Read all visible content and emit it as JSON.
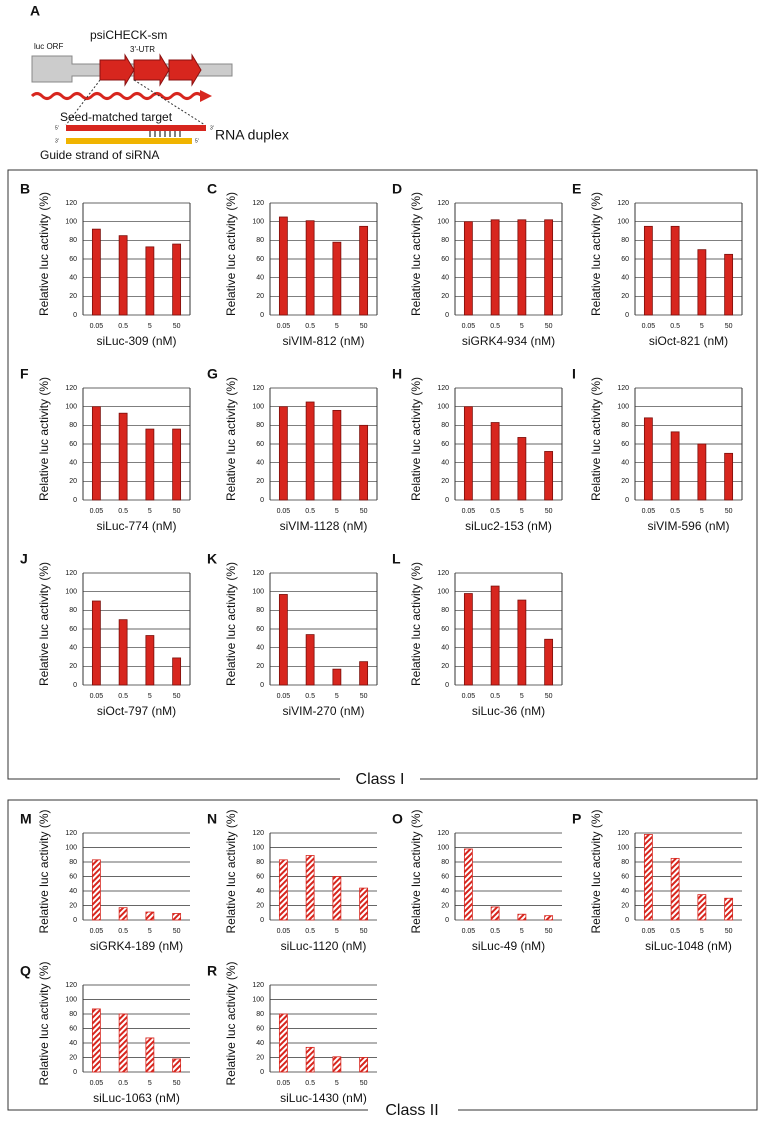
{
  "diagram": {
    "panel": "A",
    "title": "psiCHECK-sm",
    "luc": "luc ORF",
    "utr": "3'-UTR",
    "target": "Seed-matched target",
    "guide": "Guide strand of siRNA",
    "duplex": "RNA duplex",
    "five": "5'",
    "three": "3'"
  },
  "groups": [
    {
      "label": "Class I"
    },
    {
      "label": "Class II"
    }
  ],
  "chart_data": [
    {
      "type": "bar",
      "panel": "B",
      "categories": [
        "0.05",
        "0.5",
        "5",
        "50"
      ],
      "values": [
        92,
        85,
        73,
        76
      ],
      "xlabel": "siLuc-309 (nM)",
      "ylabel": "Relative luc activity (%)",
      "ylim": [
        0,
        120
      ],
      "yticks": [
        0,
        20,
        40,
        60,
        80,
        100,
        120
      ],
      "color": "#d7261e",
      "hatched": false,
      "frame": true
    },
    {
      "type": "bar",
      "panel": "C",
      "categories": [
        "0.05",
        "0.5",
        "5",
        "50"
      ],
      "values": [
        105,
        101,
        78,
        95
      ],
      "xlabel": "siVIM-812 (nM)",
      "ylabel": "Relative luc activity (%)",
      "ylim": [
        0,
        120
      ],
      "yticks": [
        0,
        20,
        40,
        60,
        80,
        100,
        120
      ],
      "color": "#d7261e",
      "hatched": false,
      "frame": true
    },
    {
      "type": "bar",
      "panel": "D",
      "categories": [
        "0.05",
        "0.5",
        "5",
        "50"
      ],
      "values": [
        100,
        102,
        102,
        102
      ],
      "xlabel": "siGRK4-934 (nM)",
      "ylabel": "Relative luc activity (%)",
      "ylim": [
        0,
        120
      ],
      "yticks": [
        0,
        20,
        40,
        60,
        80,
        100,
        120
      ],
      "color": "#d7261e",
      "hatched": false,
      "frame": true
    },
    {
      "type": "bar",
      "panel": "E",
      "categories": [
        "0.05",
        "0.5",
        "5",
        "50"
      ],
      "values": [
        95,
        95,
        70,
        65
      ],
      "xlabel": "siOct-821 (nM)",
      "ylabel": "Relative luc activity (%)",
      "ylim": [
        0,
        120
      ],
      "yticks": [
        0,
        20,
        40,
        60,
        80,
        100,
        120
      ],
      "color": "#d7261e",
      "hatched": false,
      "frame": true
    },
    {
      "type": "bar",
      "panel": "F",
      "categories": [
        "0.05",
        "0.5",
        "5",
        "50"
      ],
      "values": [
        100,
        93,
        76,
        76
      ],
      "xlabel": "siLuc-774 (nM)",
      "ylabel": "Relative luc activity (%)",
      "ylim": [
        0,
        120
      ],
      "yticks": [
        0,
        20,
        40,
        60,
        80,
        100,
        120
      ],
      "color": "#d7261e",
      "hatched": false,
      "frame": true
    },
    {
      "type": "bar",
      "panel": "G",
      "categories": [
        "0.05",
        "0.5",
        "5",
        "50"
      ],
      "values": [
        100,
        105,
        96,
        80
      ],
      "xlabel": "siVIM-1128 (nM)",
      "ylabel": "Relative luc activity (%)",
      "ylim": [
        0,
        120
      ],
      "yticks": [
        0,
        20,
        40,
        60,
        80,
        100,
        120
      ],
      "color": "#d7261e",
      "hatched": false,
      "frame": true
    },
    {
      "type": "bar",
      "panel": "H",
      "categories": [
        "0.05",
        "0.5",
        "5",
        "50"
      ],
      "values": [
        100,
        83,
        67,
        52
      ],
      "xlabel": "siLuc2-153 (nM)",
      "ylabel": "Relative luc activity (%)",
      "ylim": [
        0,
        120
      ],
      "yticks": [
        0,
        20,
        40,
        60,
        80,
        100,
        120
      ],
      "color": "#d7261e",
      "hatched": false,
      "frame": true
    },
    {
      "type": "bar",
      "panel": "I",
      "categories": [
        "0.05",
        "0.5",
        "5",
        "50"
      ],
      "values": [
        88,
        73,
        60,
        50
      ],
      "xlabel": "siVIM-596 (nM)",
      "ylabel": "Relative luc activity (%)",
      "ylim": [
        0,
        120
      ],
      "yticks": [
        0,
        20,
        40,
        60,
        80,
        100,
        120
      ],
      "color": "#d7261e",
      "hatched": false,
      "frame": true
    },
    {
      "type": "bar",
      "panel": "J",
      "categories": [
        "0.05",
        "0.5",
        "5",
        "50"
      ],
      "values": [
        90,
        70,
        53,
        29
      ],
      "xlabel": "siOct-797 (nM)",
      "ylabel": "Relative luc activity (%)",
      "ylim": [
        0,
        120
      ],
      "yticks": [
        0,
        20,
        40,
        60,
        80,
        100,
        120
      ],
      "color": "#d7261e",
      "hatched": false,
      "frame": true
    },
    {
      "type": "bar",
      "panel": "K",
      "categories": [
        "0.05",
        "0.5",
        "5",
        "50"
      ],
      "values": [
        97,
        54,
        17,
        25
      ],
      "xlabel": "siVIM-270 (nM)",
      "ylabel": "Relative luc activity (%)",
      "ylim": [
        0,
        120
      ],
      "yticks": [
        0,
        20,
        40,
        60,
        80,
        100,
        120
      ],
      "color": "#d7261e",
      "hatched": false,
      "frame": true
    },
    {
      "type": "bar",
      "panel": "L",
      "categories": [
        "0.05",
        "0.5",
        "5",
        "50"
      ],
      "values": [
        98,
        106,
        91,
        49
      ],
      "xlabel": "siLuc-36 (nM)",
      "ylabel": "Relative luc activity (%)",
      "ylim": [
        0,
        120
      ],
      "yticks": [
        0,
        20,
        40,
        60,
        80,
        100,
        120
      ],
      "color": "#d7261e",
      "hatched": false,
      "frame": true
    },
    {
      "type": "bar",
      "panel": "M",
      "categories": [
        "0.05",
        "0.5",
        "5",
        "50"
      ],
      "values": [
        83,
        17,
        11,
        9
      ],
      "xlabel": "siGRK4-189 (nM)",
      "ylabel": "Relative luc activity (%)",
      "ylim": [
        0,
        120
      ],
      "yticks": [
        0,
        20,
        40,
        60,
        80,
        100,
        120
      ],
      "color": "#d7261e",
      "hatched": true,
      "frame": false
    },
    {
      "type": "bar",
      "panel": "N",
      "categories": [
        "0.05",
        "0.5",
        "5",
        "50"
      ],
      "values": [
        83,
        89,
        60,
        44
      ],
      "xlabel": "siLuc-1120 (nM)",
      "ylabel": "Relative luc activity (%)",
      "ylim": [
        0,
        120
      ],
      "yticks": [
        0,
        20,
        40,
        60,
        80,
        100,
        120
      ],
      "color": "#d7261e",
      "hatched": true,
      "frame": false
    },
    {
      "type": "bar",
      "panel": "O",
      "categories": [
        "0.05",
        "0.5",
        "5",
        "50"
      ],
      "values": [
        98,
        18,
        8,
        6
      ],
      "xlabel": "siLuc-49 (nM)",
      "ylabel": "Relative luc activity (%)",
      "ylim": [
        0,
        120
      ],
      "yticks": [
        0,
        20,
        40,
        60,
        80,
        100,
        120
      ],
      "color": "#d7261e",
      "hatched": true,
      "frame": false
    },
    {
      "type": "bar",
      "panel": "P",
      "categories": [
        "0.05",
        "0.5",
        "5",
        "50"
      ],
      "values": [
        118,
        85,
        35,
        30
      ],
      "xlabel": "siLuc-1048 (nM)",
      "ylabel": "Relative luc activity (%)",
      "ylim": [
        0,
        120
      ],
      "yticks": [
        0,
        20,
        40,
        60,
        80,
        100,
        120
      ],
      "color": "#d7261e",
      "hatched": true,
      "frame": false
    },
    {
      "type": "bar",
      "panel": "Q",
      "categories": [
        "0.05",
        "0.5",
        "5",
        "50"
      ],
      "values": [
        87,
        80,
        47,
        18
      ],
      "xlabel": "siLuc-1063 (nM)",
      "ylabel": "Relative luc activity (%)",
      "ylim": [
        0,
        120
      ],
      "yticks": [
        0,
        20,
        40,
        60,
        80,
        100,
        120
      ],
      "color": "#d7261e",
      "hatched": true,
      "frame": false
    },
    {
      "type": "bar",
      "panel": "R",
      "categories": [
        "0.05",
        "0.5",
        "5",
        "50"
      ],
      "values": [
        80,
        34,
        21,
        20
      ],
      "xlabel": "siLuc-1430 (nM)",
      "ylabel": "Relative luc activity (%)",
      "ylim": [
        0,
        120
      ],
      "yticks": [
        0,
        20,
        40,
        60,
        80,
        100,
        120
      ],
      "color": "#d7261e",
      "hatched": true,
      "frame": false
    }
  ]
}
